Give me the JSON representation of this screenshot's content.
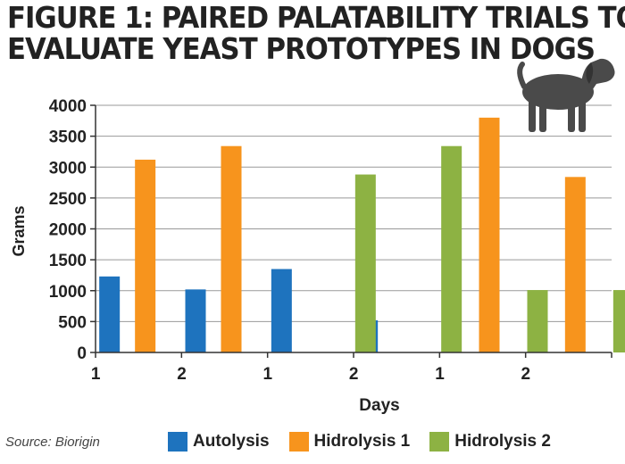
{
  "title_lines": [
    "FIGURE 1: PAIRED PALATABILITY TRIALS TO",
    "EVALUATE YEAST PROTOTYPES IN DOGS"
  ],
  "source": "Source: Biorigin",
  "colors": {
    "Autolysis": "#1e73be",
    "Hidrolysis 1": "#f7941d",
    "Hidrolysis 2": "#8db243",
    "dog_icon": "#4a4a4a"
  },
  "icons": [
    "dog-silhouette-icon"
  ],
  "chart_data": {
    "type": "bar",
    "title": "FIGURE 1: PAIRED PALATABILITY TRIALS TO EVALUATE YEAST PROTOTYPES IN DOGS",
    "xlabel": "Days",
    "ylabel": "Grams",
    "categories": [
      "1",
      "2",
      "1",
      "2",
      "1",
      "2"
    ],
    "ylim": [
      0,
      4000
    ],
    "yticks": [
      0,
      500,
      1000,
      1500,
      2000,
      2500,
      3000,
      3500,
      4000
    ],
    "grid": "horizontal",
    "legend_position": "bottom",
    "series": [
      {
        "name": "Autolysis",
        "values": [
          1230,
          1020,
          1350,
          520,
          null,
          null
        ]
      },
      {
        "name": "Hidrolysis 1",
        "values": [
          3120,
          3340,
          null,
          null,
          3800,
          2840
        ]
      },
      {
        "name": "Hidrolysis 2",
        "values": [
          null,
          null,
          2880,
          3340,
          1010,
          1010
        ]
      }
    ]
  }
}
